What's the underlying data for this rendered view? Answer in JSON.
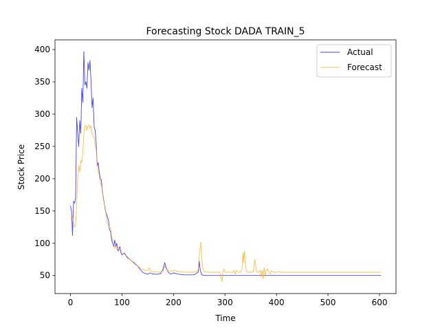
{
  "chart_data": {
    "type": "line",
    "title": "Forecasting Stock DADA TRAIN_5",
    "xlabel": "Time",
    "ylabel": "Stock Price",
    "xlim": [
      -30,
      632
    ],
    "ylim": [
      22,
      415
    ],
    "xticks": [
      0,
      100,
      200,
      300,
      400,
      500,
      600
    ],
    "yticks": [
      50,
      100,
      150,
      200,
      250,
      300,
      350,
      400
    ],
    "grid": false,
    "legend_position": "top-right",
    "series": [
      {
        "name": "Actual",
        "color": "#0000ff",
        "points": [
          [
            0,
            158
          ],
          [
            2,
            150
          ],
          [
            4,
            112
          ],
          [
            6,
            165
          ],
          [
            8,
            162
          ],
          [
            10,
            170
          ],
          [
            12,
            295
          ],
          [
            14,
            270
          ],
          [
            16,
            250
          ],
          [
            18,
            290
          ],
          [
            20,
            270
          ],
          [
            22,
            340
          ],
          [
            24,
            318
          ],
          [
            26,
            397
          ],
          [
            28,
            345
          ],
          [
            30,
            350
          ],
          [
            32,
            340
          ],
          [
            34,
            380
          ],
          [
            36,
            368
          ],
          [
            38,
            383
          ],
          [
            40,
            350
          ],
          [
            42,
            310
          ],
          [
            44,
            325
          ],
          [
            46,
            280
          ],
          [
            48,
            275
          ],
          [
            50,
            255
          ],
          [
            52,
            220
          ],
          [
            54,
            225
          ],
          [
            56,
            210
          ],
          [
            58,
            200
          ],
          [
            60,
            198
          ],
          [
            62,
            180
          ],
          [
            64,
            170
          ],
          [
            66,
            160
          ],
          [
            68,
            150
          ],
          [
            70,
            145
          ],
          [
            72,
            140
          ],
          [
            74,
            135
          ],
          [
            76,
            120
          ],
          [
            78,
            118
          ],
          [
            80,
            105
          ],
          [
            82,
            100
          ],
          [
            84,
            95
          ],
          [
            86,
            105
          ],
          [
            88,
            95
          ],
          [
            90,
            100
          ],
          [
            92,
            88
          ],
          [
            94,
            90
          ],
          [
            96,
            95
          ],
          [
            98,
            85
          ],
          [
            100,
            82
          ],
          [
            105,
            85
          ],
          [
            110,
            78
          ],
          [
            115,
            75
          ],
          [
            120,
            72
          ],
          [
            125,
            68
          ],
          [
            130,
            65
          ],
          [
            135,
            60
          ],
          [
            140,
            55
          ],
          [
            145,
            53
          ],
          [
            150,
            52
          ],
          [
            155,
            54
          ],
          [
            160,
            52
          ],
          [
            165,
            52
          ],
          [
            170,
            52
          ],
          [
            175,
            53
          ],
          [
            180,
            60
          ],
          [
            183,
            70
          ],
          [
            186,
            62
          ],
          [
            190,
            55
          ],
          [
            195,
            52
          ],
          [
            200,
            54
          ],
          [
            205,
            53
          ],
          [
            210,
            52
          ],
          [
            220,
            51
          ],
          [
            230,
            51
          ],
          [
            240,
            51
          ],
          [
            248,
            55
          ],
          [
            250,
            72
          ],
          [
            252,
            58
          ],
          [
            255,
            51
          ],
          [
            260,
            50
          ],
          [
            280,
            50
          ],
          [
            300,
            50
          ],
          [
            350,
            50
          ],
          [
            400,
            50
          ],
          [
            450,
            50
          ],
          [
            500,
            50
          ],
          [
            550,
            50
          ],
          [
            600,
            50
          ],
          [
            603,
            50
          ]
        ]
      },
      {
        "name": "Forecast",
        "color": "#ffa500",
        "points": [
          [
            0,
            140
          ],
          [
            2,
            138
          ],
          [
            4,
            142
          ],
          [
            6,
            130
          ],
          [
            8,
            125
          ],
          [
            10,
            128
          ],
          [
            12,
            160
          ],
          [
            14,
            200
          ],
          [
            16,
            220
          ],
          [
            18,
            210
          ],
          [
            20,
            228
          ],
          [
            22,
            225
          ],
          [
            24,
            240
          ],
          [
            26,
            270
          ],
          [
            28,
            282
          ],
          [
            30,
            282
          ],
          [
            32,
            275
          ],
          [
            34,
            282
          ],
          [
            36,
            283
          ],
          [
            38,
            278
          ],
          [
            40,
            282
          ],
          [
            42,
            270
          ],
          [
            44,
            265
          ],
          [
            46,
            265
          ],
          [
            48,
            250
          ],
          [
            50,
            245
          ],
          [
            52,
            225
          ],
          [
            54,
            212
          ],
          [
            56,
            205
          ],
          [
            58,
            195
          ],
          [
            60,
            190
          ],
          [
            62,
            182
          ],
          [
            64,
            168
          ],
          [
            66,
            160
          ],
          [
            68,
            152
          ],
          [
            70,
            140
          ],
          [
            72,
            130
          ],
          [
            74,
            128
          ],
          [
            76,
            125
          ],
          [
            78,
            122
          ],
          [
            80,
            110
          ],
          [
            82,
            105
          ],
          [
            84,
            100
          ],
          [
            86,
            92
          ],
          [
            88,
            95
          ],
          [
            90,
            92
          ],
          [
            92,
            95
          ],
          [
            94,
            92
          ],
          [
            96,
            88
          ],
          [
            98,
            88
          ],
          [
            100,
            85
          ],
          [
            105,
            82
          ],
          [
            110,
            80
          ],
          [
            115,
            75
          ],
          [
            120,
            72
          ],
          [
            125,
            70
          ],
          [
            130,
            65
          ],
          [
            135,
            62
          ],
          [
            140,
            60
          ],
          [
            145,
            58
          ],
          [
            150,
            58
          ],
          [
            153,
            62
          ],
          [
            155,
            58
          ],
          [
            160,
            55
          ],
          [
            165,
            56
          ],
          [
            170,
            55
          ],
          [
            175,
            55
          ],
          [
            180,
            57
          ],
          [
            183,
            65
          ],
          [
            186,
            60
          ],
          [
            190,
            58
          ],
          [
            195,
            56
          ],
          [
            200,
            58
          ],
          [
            205,
            57
          ],
          [
            210,
            56
          ],
          [
            220,
            55
          ],
          [
            230,
            55
          ],
          [
            240,
            55
          ],
          [
            246,
            56
          ],
          [
            248,
            60
          ],
          [
            250,
            80
          ],
          [
            252,
            95
          ],
          [
            253,
            102
          ],
          [
            255,
            75
          ],
          [
            257,
            60
          ],
          [
            260,
            56
          ],
          [
            270,
            55
          ],
          [
            280,
            55
          ],
          [
            290,
            55
          ],
          [
            293,
            45
          ],
          [
            294,
            40
          ],
          [
            296,
            56
          ],
          [
            298,
            60
          ],
          [
            300,
            55
          ],
          [
            310,
            55
          ],
          [
            315,
            55
          ],
          [
            318,
            58
          ],
          [
            320,
            52
          ],
          [
            322,
            58
          ],
          [
            325,
            55
          ],
          [
            330,
            55
          ],
          [
            333,
            60
          ],
          [
            335,
            85
          ],
          [
            336,
            70
          ],
          [
            338,
            88
          ],
          [
            340,
            65
          ],
          [
            342,
            56
          ],
          [
            345,
            55
          ],
          [
            350,
            55
          ],
          [
            355,
            56
          ],
          [
            358,
            75
          ],
          [
            360,
            62
          ],
          [
            362,
            55
          ],
          [
            365,
            55
          ],
          [
            368,
            58
          ],
          [
            370,
            48
          ],
          [
            372,
            58
          ],
          [
            374,
            45
          ],
          [
            376,
            62
          ],
          [
            378,
            48
          ],
          [
            380,
            58
          ],
          [
            382,
            60
          ],
          [
            385,
            56
          ],
          [
            388,
            52
          ],
          [
            390,
            57
          ],
          [
            395,
            55
          ],
          [
            400,
            55
          ],
          [
            405,
            56
          ],
          [
            410,
            55
          ],
          [
            420,
            55
          ],
          [
            450,
            55
          ],
          [
            500,
            55
          ],
          [
            550,
            55
          ],
          [
            600,
            55
          ],
          [
            603,
            55
          ]
        ]
      }
    ]
  }
}
